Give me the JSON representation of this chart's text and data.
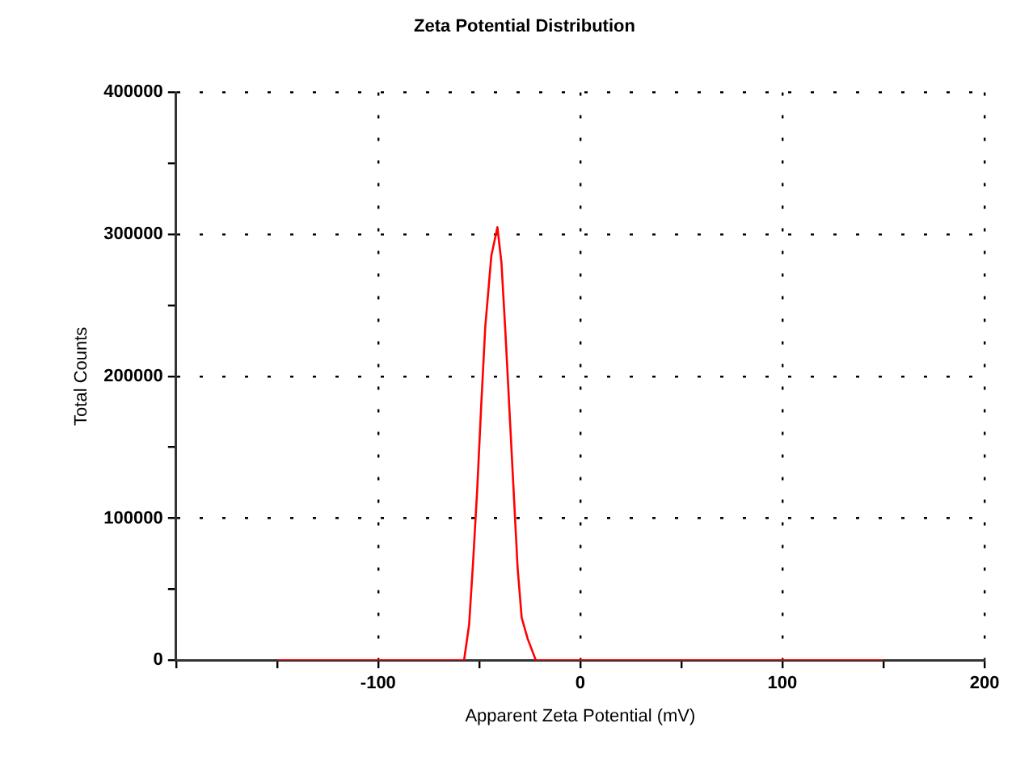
{
  "chart_data": {
    "type": "line",
    "title": "Zeta Potential Distribution",
    "xlabel": "Apparent Zeta Potential (mV)",
    "ylabel": "Total Counts",
    "x": [
      -150,
      -57.5,
      -55,
      -53,
      -51,
      -49,
      -47,
      -44,
      -41,
      -39,
      -37,
      -35,
      -33,
      -31,
      -29,
      -26,
      -22,
      150
    ],
    "series": [
      {
        "color": "#ff0000",
        "values": [
          0,
          0,
          25000,
          70000,
          120000,
          180000,
          235000,
          285000,
          305000,
          280000,
          230000,
          175000,
          120000,
          65000,
          30000,
          15000,
          0,
          0
        ]
      }
    ],
    "xlim": [
      -200,
      200
    ],
    "xticks": [
      {
        "value": -200,
        "label": null
      },
      {
        "value": -150,
        "label": null
      },
      -100,
      {
        "value": -50,
        "label": null
      },
      0,
      {
        "value": 50,
        "label": null
      },
      100,
      {
        "value": 150,
        "label": null
      },
      200
    ],
    "ylim": [
      0,
      400000
    ],
    "yticks": [
      0,
      {
        "value": 50000,
        "label": null
      },
      100000,
      {
        "value": 150000,
        "label": null
      },
      200000,
      {
        "value": 250000,
        "label": null
      },
      300000,
      {
        "value": 350000,
        "label": null
      },
      400000
    ],
    "grid": true,
    "legend": false,
    "marker": "none",
    "line_style": "solid"
  }
}
